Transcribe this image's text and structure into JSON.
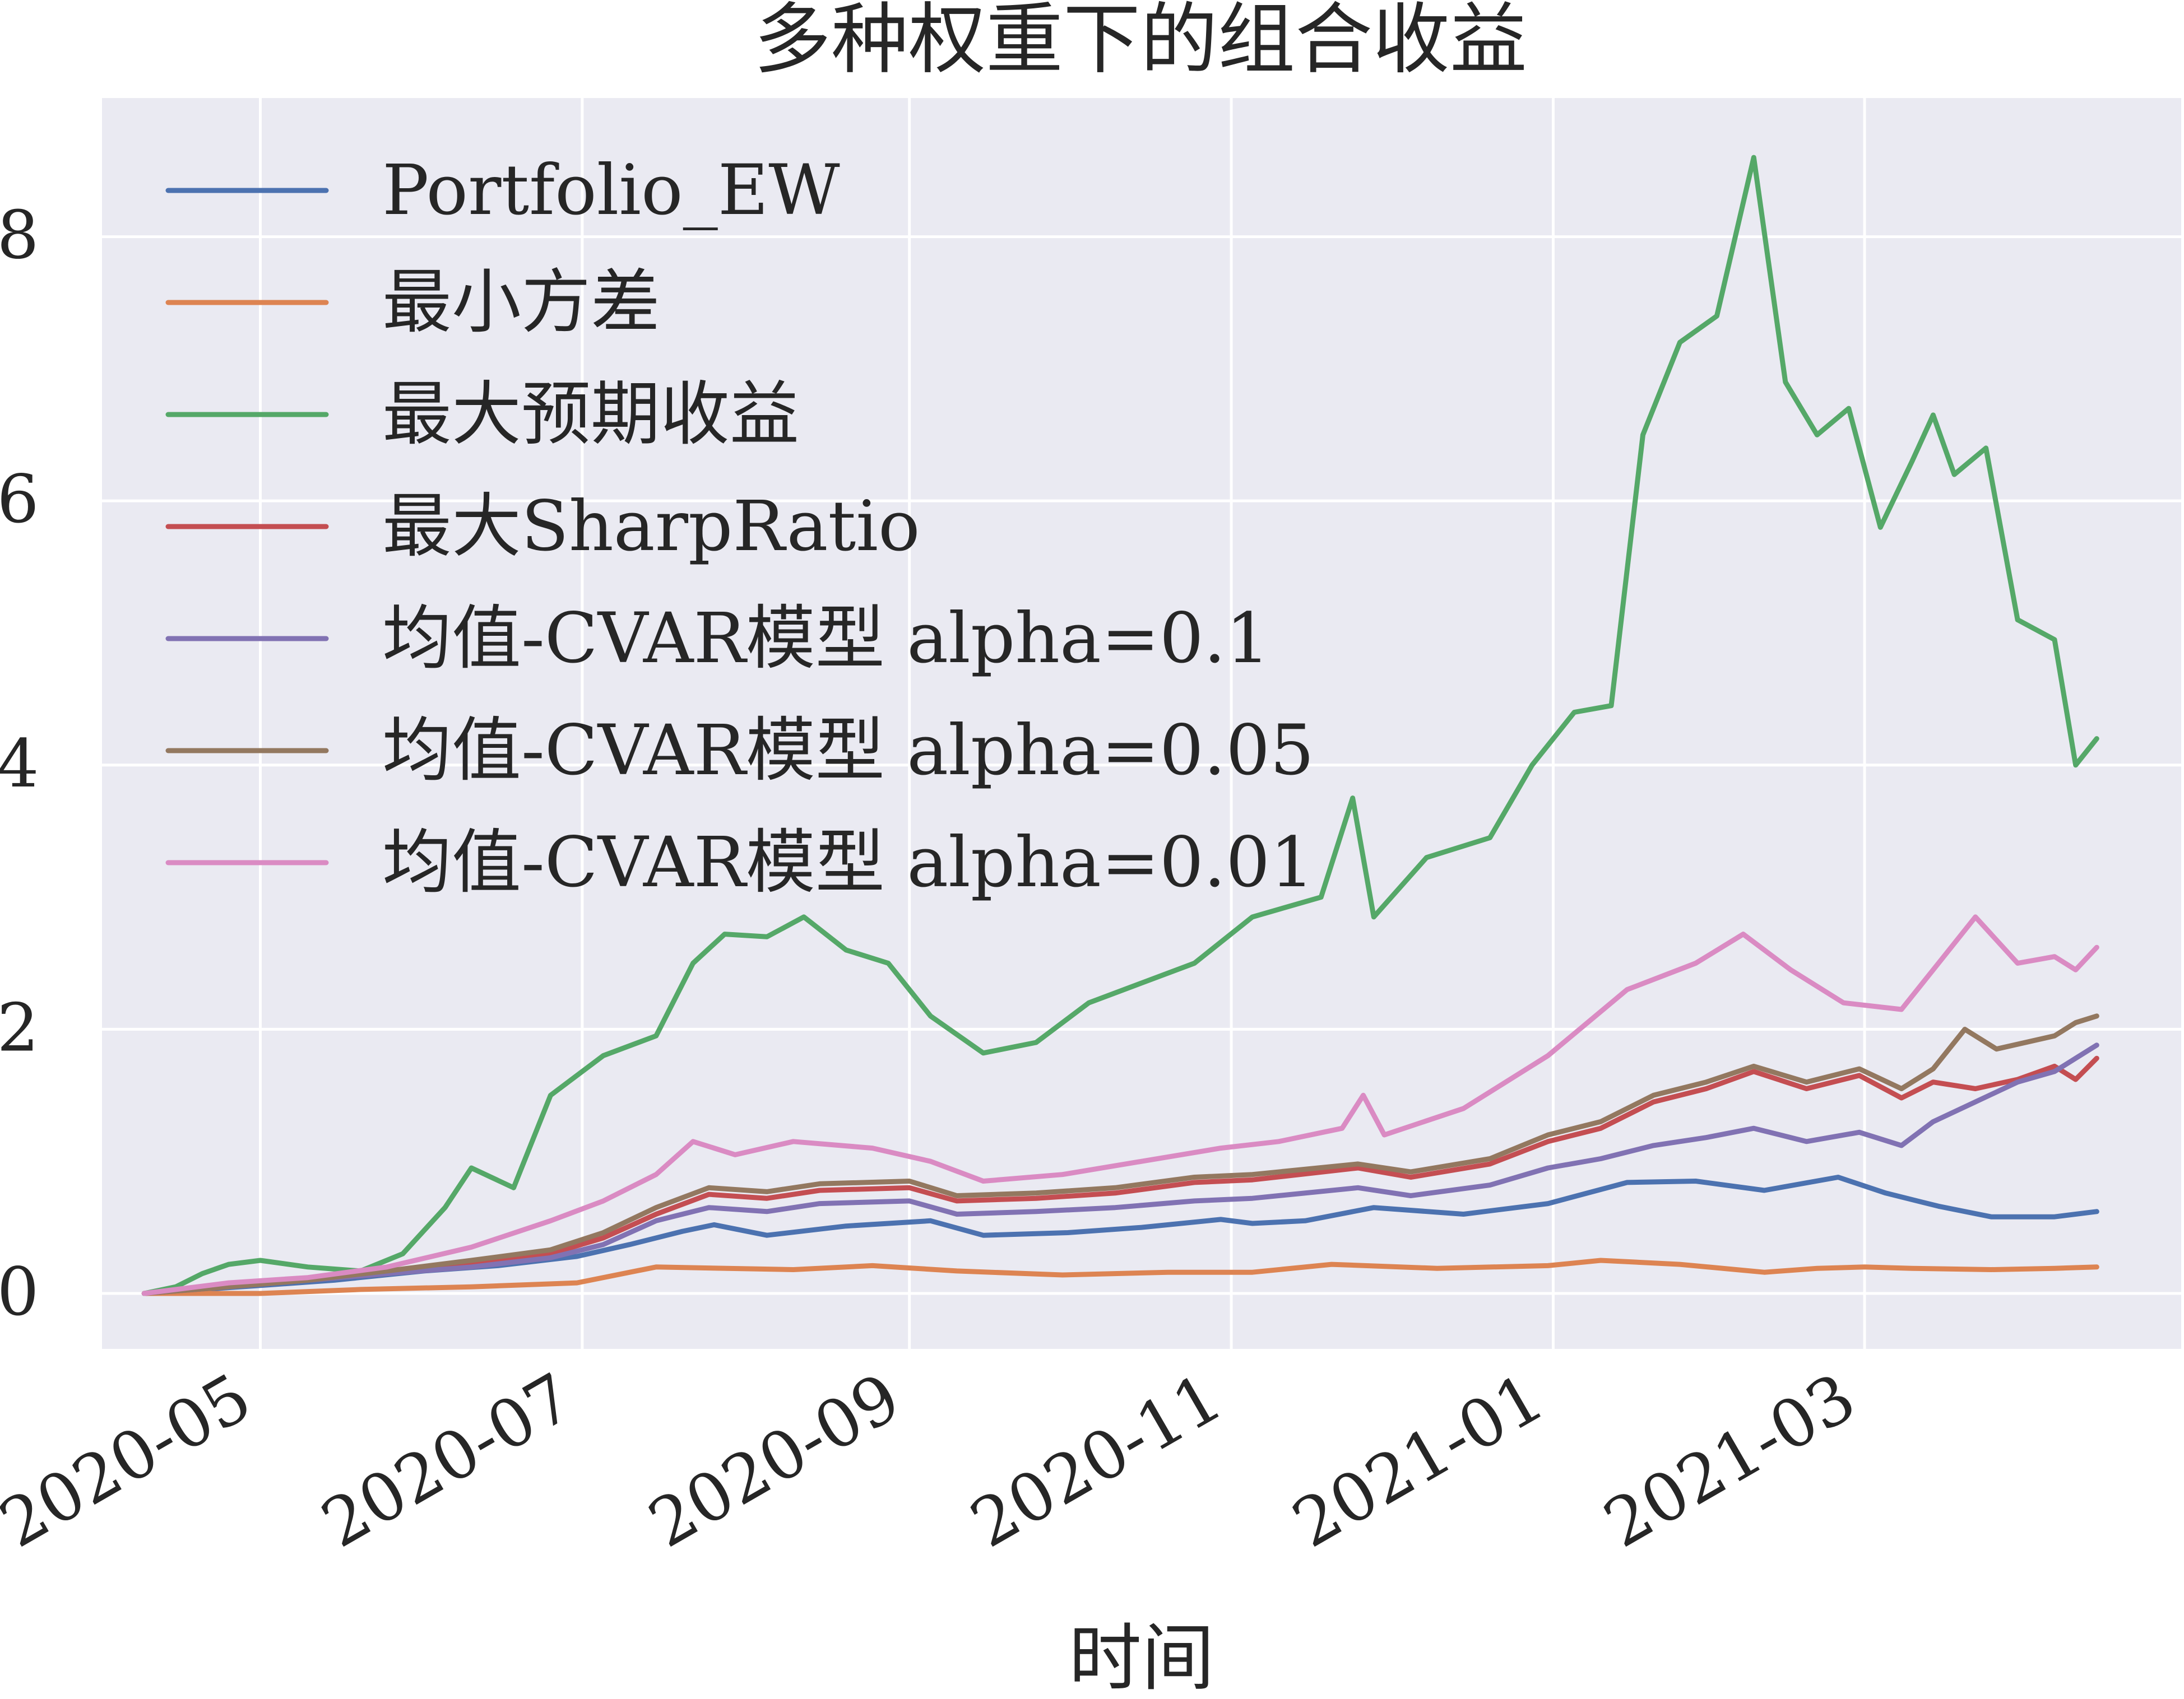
{
  "chart_data": {
    "type": "line",
    "title": "多种权重下的组合收益",
    "xlabel": "时间",
    "ylabel": "",
    "x_type": "date",
    "xlim": [
      "2020-04-01",
      "2021-04-30"
    ],
    "ylim": [
      -0.42,
      9.05
    ],
    "xticks": [
      "2020-05-01",
      "2020-07-01",
      "2020-09-01",
      "2020-11-01",
      "2021-01-01",
      "2021-03-01"
    ],
    "xtick_labels": [
      "2020-05",
      "2020-07",
      "2020-09",
      "2020-11",
      "2021-01",
      "2021-03"
    ],
    "yticks": [
      0,
      2,
      4,
      6,
      8
    ],
    "ytick_labels": [
      "0",
      "2",
      "4",
      "6",
      "8"
    ],
    "grid": true,
    "legend_position": "upper-left",
    "background": "#eaeaf2",
    "series": [
      {
        "name": "Portfolio_EW",
        "color": "#4c72b0",
        "points": [
          [
            "2020-04-09",
            0.0
          ],
          [
            "2020-04-20",
            0.03
          ],
          [
            "2020-05-01",
            0.06
          ],
          [
            "2020-05-15",
            0.1
          ],
          [
            "2020-06-01",
            0.17
          ],
          [
            "2020-06-15",
            0.21
          ],
          [
            "2020-06-30",
            0.28
          ],
          [
            "2020-07-10",
            0.37
          ],
          [
            "2020-07-20",
            0.47
          ],
          [
            "2020-07-26",
            0.52
          ],
          [
            "2020-08-05",
            0.44
          ],
          [
            "2020-08-20",
            0.51
          ],
          [
            "2020-09-05",
            0.55
          ],
          [
            "2020-09-15",
            0.44
          ],
          [
            "2020-10-01",
            0.46
          ],
          [
            "2020-10-15",
            0.5
          ],
          [
            "2020-10-30",
            0.56
          ],
          [
            "2020-11-05",
            0.53
          ],
          [
            "2020-11-15",
            0.55
          ],
          [
            "2020-11-28",
            0.65
          ],
          [
            "2020-12-15",
            0.6
          ],
          [
            "2020-12-31",
            0.68
          ],
          [
            "2021-01-15",
            0.84
          ],
          [
            "2021-01-28",
            0.85
          ],
          [
            "2021-02-10",
            0.78
          ],
          [
            "2021-02-24",
            0.88
          ],
          [
            "2021-03-05",
            0.76
          ],
          [
            "2021-03-15",
            0.66
          ],
          [
            "2021-03-25",
            0.58
          ],
          [
            "2021-04-06",
            0.58
          ],
          [
            "2021-04-14",
            0.62
          ]
        ]
      },
      {
        "name": "最小方差",
        "color": "#dd8452",
        "points": [
          [
            "2020-04-09",
            0.0
          ],
          [
            "2020-04-20",
            0.0
          ],
          [
            "2020-05-01",
            0.0
          ],
          [
            "2020-05-20",
            0.03
          ],
          [
            "2020-06-10",
            0.05
          ],
          [
            "2020-06-30",
            0.08
          ],
          [
            "2020-07-15",
            0.2
          ],
          [
            "2020-08-10",
            0.18
          ],
          [
            "2020-08-25",
            0.21
          ],
          [
            "2020-09-10",
            0.17
          ],
          [
            "2020-09-30",
            0.14
          ],
          [
            "2020-10-20",
            0.16
          ],
          [
            "2020-11-05",
            0.16
          ],
          [
            "2020-11-20",
            0.22
          ],
          [
            "2020-12-10",
            0.19
          ],
          [
            "2020-12-31",
            0.21
          ],
          [
            "2021-01-10",
            0.25
          ],
          [
            "2021-01-25",
            0.22
          ],
          [
            "2021-02-10",
            0.16
          ],
          [
            "2021-02-20",
            0.19
          ],
          [
            "2021-03-01",
            0.2
          ],
          [
            "2021-03-10",
            0.19
          ],
          [
            "2021-03-25",
            0.18
          ],
          [
            "2021-04-06",
            0.19
          ],
          [
            "2021-04-14",
            0.2
          ]
        ]
      },
      {
        "name": "最大预期收益",
        "color": "#55a868",
        "points": [
          [
            "2020-04-09",
            0.0
          ],
          [
            "2020-04-15",
            0.05
          ],
          [
            "2020-04-20",
            0.15
          ],
          [
            "2020-04-25",
            0.22
          ],
          [
            "2020-05-01",
            0.25
          ],
          [
            "2020-05-10",
            0.2
          ],
          [
            "2020-05-20",
            0.17
          ],
          [
            "2020-05-28",
            0.3
          ],
          [
            "2020-06-05",
            0.65
          ],
          [
            "2020-06-10",
            0.95
          ],
          [
            "2020-06-18",
            0.8
          ],
          [
            "2020-06-25",
            1.5
          ],
          [
            "2020-07-05",
            1.8
          ],
          [
            "2020-07-15",
            1.95
          ],
          [
            "2020-07-22",
            2.5
          ],
          [
            "2020-07-28",
            2.72
          ],
          [
            "2020-08-05",
            2.7
          ],
          [
            "2020-08-12",
            2.85
          ],
          [
            "2020-08-20",
            2.6
          ],
          [
            "2020-08-28",
            2.5
          ],
          [
            "2020-09-05",
            2.1
          ],
          [
            "2020-09-15",
            1.82
          ],
          [
            "2020-09-25",
            1.9
          ],
          [
            "2020-10-05",
            2.2
          ],
          [
            "2020-10-15",
            2.35
          ],
          [
            "2020-10-25",
            2.5
          ],
          [
            "2020-11-05",
            2.85
          ],
          [
            "2020-11-18",
            3.0
          ],
          [
            "2020-11-24",
            3.75
          ],
          [
            "2020-11-28",
            2.85
          ],
          [
            "2020-12-08",
            3.3
          ],
          [
            "2020-12-20",
            3.45
          ],
          [
            "2020-12-28",
            4.0
          ],
          [
            "2021-01-05",
            4.4
          ],
          [
            "2021-01-12",
            4.45
          ],
          [
            "2021-01-18",
            6.5
          ],
          [
            "2021-01-25",
            7.2
          ],
          [
            "2021-02-01",
            7.4
          ],
          [
            "2021-02-08",
            8.6
          ],
          [
            "2021-02-14",
            6.9
          ],
          [
            "2021-02-20",
            6.5
          ],
          [
            "2021-02-26",
            6.7
          ],
          [
            "2021-03-04",
            5.8
          ],
          [
            "2021-03-10",
            6.3
          ],
          [
            "2021-03-14",
            6.65
          ],
          [
            "2021-03-18",
            6.2
          ],
          [
            "2021-03-24",
            6.4
          ],
          [
            "2021-03-30",
            5.1
          ],
          [
            "2021-04-06",
            4.95
          ],
          [
            "2021-04-10",
            4.0
          ],
          [
            "2021-04-14",
            4.2
          ]
        ]
      },
      {
        "name": "最大SharpRatio",
        "color": "#c44e52",
        "points": [
          [
            "2020-04-09",
            0.0
          ],
          [
            "2020-04-25",
            0.05
          ],
          [
            "2020-05-10",
            0.1
          ],
          [
            "2020-05-25",
            0.15
          ],
          [
            "2020-06-10",
            0.22
          ],
          [
            "2020-06-25",
            0.3
          ],
          [
            "2020-07-05",
            0.42
          ],
          [
            "2020-07-15",
            0.6
          ],
          [
            "2020-07-25",
            0.75
          ],
          [
            "2020-08-05",
            0.72
          ],
          [
            "2020-08-15",
            0.78
          ],
          [
            "2020-09-01",
            0.8
          ],
          [
            "2020-09-10",
            0.7
          ],
          [
            "2020-09-25",
            0.72
          ],
          [
            "2020-10-10",
            0.76
          ],
          [
            "2020-10-25",
            0.84
          ],
          [
            "2020-11-05",
            0.86
          ],
          [
            "2020-11-25",
            0.95
          ],
          [
            "2020-12-05",
            0.88
          ],
          [
            "2020-12-20",
            0.98
          ],
          [
            "2020-12-31",
            1.15
          ],
          [
            "2021-01-10",
            1.25
          ],
          [
            "2021-01-20",
            1.45
          ],
          [
            "2021-01-30",
            1.55
          ],
          [
            "2021-02-08",
            1.68
          ],
          [
            "2021-02-18",
            1.55
          ],
          [
            "2021-02-28",
            1.65
          ],
          [
            "2021-03-08",
            1.48
          ],
          [
            "2021-03-14",
            1.6
          ],
          [
            "2021-03-22",
            1.55
          ],
          [
            "2021-03-30",
            1.62
          ],
          [
            "2021-04-06",
            1.72
          ],
          [
            "2021-04-10",
            1.62
          ],
          [
            "2021-04-14",
            1.78
          ]
        ]
      },
      {
        "name": "均值-CVAR模型 alpha=0.1",
        "color": "#8172b3",
        "points": [
          [
            "2020-04-09",
            0.0
          ],
          [
            "2020-04-25",
            0.05
          ],
          [
            "2020-05-10",
            0.1
          ],
          [
            "2020-05-25",
            0.15
          ],
          [
            "2020-06-10",
            0.2
          ],
          [
            "2020-06-25",
            0.27
          ],
          [
            "2020-07-05",
            0.37
          ],
          [
            "2020-07-15",
            0.55
          ],
          [
            "2020-07-25",
            0.65
          ],
          [
            "2020-08-05",
            0.62
          ],
          [
            "2020-08-15",
            0.68
          ],
          [
            "2020-09-01",
            0.7
          ],
          [
            "2020-09-10",
            0.6
          ],
          [
            "2020-09-25",
            0.62
          ],
          [
            "2020-10-10",
            0.65
          ],
          [
            "2020-10-25",
            0.7
          ],
          [
            "2020-11-05",
            0.72
          ],
          [
            "2020-11-25",
            0.8
          ],
          [
            "2020-12-05",
            0.74
          ],
          [
            "2020-12-20",
            0.82
          ],
          [
            "2020-12-31",
            0.95
          ],
          [
            "2021-01-10",
            1.02
          ],
          [
            "2021-01-20",
            1.12
          ],
          [
            "2021-01-30",
            1.18
          ],
          [
            "2021-02-08",
            1.25
          ],
          [
            "2021-02-18",
            1.15
          ],
          [
            "2021-02-28",
            1.22
          ],
          [
            "2021-03-08",
            1.12
          ],
          [
            "2021-03-14",
            1.3
          ],
          [
            "2021-03-22",
            1.45
          ],
          [
            "2021-03-30",
            1.6
          ],
          [
            "2021-04-06",
            1.68
          ],
          [
            "2021-04-10",
            1.78
          ],
          [
            "2021-04-14",
            1.88
          ]
        ]
      },
      {
        "name": "均值-CVAR模型 alpha=0.05",
        "color": "#937860",
        "points": [
          [
            "2020-04-09",
            0.0
          ],
          [
            "2020-04-25",
            0.05
          ],
          [
            "2020-05-10",
            0.1
          ],
          [
            "2020-05-25",
            0.17
          ],
          [
            "2020-06-10",
            0.25
          ],
          [
            "2020-06-25",
            0.33
          ],
          [
            "2020-07-05",
            0.46
          ],
          [
            "2020-07-15",
            0.65
          ],
          [
            "2020-07-25",
            0.8
          ],
          [
            "2020-08-05",
            0.77
          ],
          [
            "2020-08-15",
            0.83
          ],
          [
            "2020-09-01",
            0.85
          ],
          [
            "2020-09-10",
            0.74
          ],
          [
            "2020-09-25",
            0.76
          ],
          [
            "2020-10-10",
            0.8
          ],
          [
            "2020-10-25",
            0.88
          ],
          [
            "2020-11-05",
            0.9
          ],
          [
            "2020-11-25",
            0.98
          ],
          [
            "2020-12-05",
            0.92
          ],
          [
            "2020-12-20",
            1.02
          ],
          [
            "2020-12-31",
            1.2
          ],
          [
            "2021-01-10",
            1.3
          ],
          [
            "2021-01-20",
            1.5
          ],
          [
            "2021-01-30",
            1.6
          ],
          [
            "2021-02-08",
            1.72
          ],
          [
            "2021-02-18",
            1.6
          ],
          [
            "2021-02-28",
            1.7
          ],
          [
            "2021-03-08",
            1.55
          ],
          [
            "2021-03-14",
            1.7
          ],
          [
            "2021-03-20",
            2.0
          ],
          [
            "2021-03-26",
            1.85
          ],
          [
            "2021-04-06",
            1.95
          ],
          [
            "2021-04-10",
            2.05
          ],
          [
            "2021-04-14",
            2.1
          ]
        ]
      },
      {
        "name": "均值-CVAR模型 alpha=0.01",
        "color": "#da8bc3",
        "points": [
          [
            "2020-04-09",
            0.0
          ],
          [
            "2020-04-25",
            0.08
          ],
          [
            "2020-05-10",
            0.12
          ],
          [
            "2020-05-25",
            0.2
          ],
          [
            "2020-06-10",
            0.35
          ],
          [
            "2020-06-25",
            0.55
          ],
          [
            "2020-07-05",
            0.7
          ],
          [
            "2020-07-15",
            0.9
          ],
          [
            "2020-07-22",
            1.15
          ],
          [
            "2020-07-30",
            1.05
          ],
          [
            "2020-08-10",
            1.15
          ],
          [
            "2020-08-25",
            1.1
          ],
          [
            "2020-09-05",
            1.0
          ],
          [
            "2020-09-15",
            0.85
          ],
          [
            "2020-09-30",
            0.9
          ],
          [
            "2020-10-15",
            1.0
          ],
          [
            "2020-10-30",
            1.1
          ],
          [
            "2020-11-10",
            1.15
          ],
          [
            "2020-11-22",
            1.25
          ],
          [
            "2020-11-26",
            1.5
          ],
          [
            "2020-11-30",
            1.2
          ],
          [
            "2020-12-15",
            1.4
          ],
          [
            "2020-12-31",
            1.8
          ],
          [
            "2021-01-15",
            2.3
          ],
          [
            "2021-01-28",
            2.5
          ],
          [
            "2021-02-06",
            2.72
          ],
          [
            "2021-02-15",
            2.45
          ],
          [
            "2021-02-25",
            2.2
          ],
          [
            "2021-03-08",
            2.15
          ],
          [
            "2021-03-15",
            2.5
          ],
          [
            "2021-03-22",
            2.85
          ],
          [
            "2021-03-30",
            2.5
          ],
          [
            "2021-04-06",
            2.55
          ],
          [
            "2021-04-10",
            2.45
          ],
          [
            "2021-04-14",
            2.62
          ]
        ]
      }
    ]
  }
}
